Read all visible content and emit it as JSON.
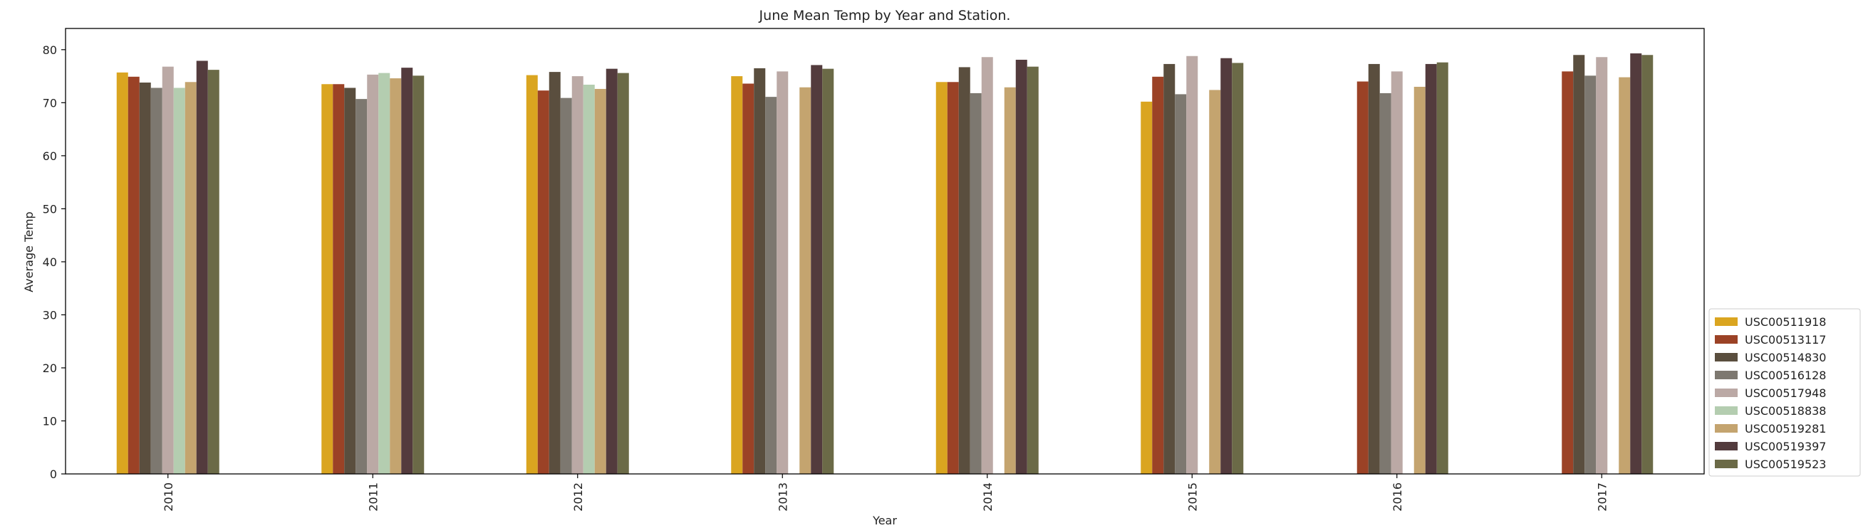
{
  "chart_data": {
    "type": "bar",
    "title": "June Mean Temp by Year and Station.",
    "xlabel": "Year",
    "ylabel": "Average Temp",
    "ylim": [
      0,
      84
    ],
    "yticks": [
      0,
      10,
      20,
      30,
      40,
      50,
      60,
      70,
      80
    ],
    "grid": false,
    "legend_position": "lower-right",
    "categories": [
      "2010",
      "2011",
      "2012",
      "2013",
      "2014",
      "2015",
      "2016",
      "2017"
    ],
    "series": [
      {
        "name": "USC00511918",
        "color": "#daa520",
        "values": [
          75.7,
          73.5,
          75.2,
          75.0,
          73.9,
          70.2,
          null,
          null
        ]
      },
      {
        "name": "USC00513117",
        "color": "#9b4226",
        "values": [
          74.9,
          73.5,
          72.3,
          73.6,
          73.9,
          74.9,
          74.0,
          75.9
        ]
      },
      {
        "name": "USC00514830",
        "color": "#5a4e3e",
        "values": [
          73.8,
          72.8,
          75.8,
          76.5,
          76.7,
          77.3,
          77.3,
          79.0
        ]
      },
      {
        "name": "USC00516128",
        "color": "#7d7870",
        "values": [
          72.8,
          70.7,
          70.9,
          71.1,
          71.8,
          71.6,
          71.8,
          75.1
        ]
      },
      {
        "name": "USC00517948",
        "color": "#bba9a5",
        "values": [
          76.8,
          75.3,
          75.0,
          75.9,
          78.6,
          78.8,
          75.9,
          78.6
        ]
      },
      {
        "name": "USC00518838",
        "color": "#b4cdb0",
        "values": [
          72.8,
          75.6,
          73.4,
          null,
          null,
          null,
          null,
          null
        ]
      },
      {
        "name": "USC00519281",
        "color": "#c4a46f",
        "values": [
          73.9,
          74.6,
          72.6,
          72.9,
          72.9,
          72.4,
          73.0,
          74.8
        ]
      },
      {
        "name": "USC00519397",
        "color": "#533b3d",
        "values": [
          77.9,
          76.6,
          76.4,
          77.1,
          78.1,
          78.4,
          77.3,
          79.3
        ]
      },
      {
        "name": "USC00519523",
        "color": "#6b6a47",
        "values": [
          76.2,
          75.1,
          75.6,
          76.4,
          76.8,
          77.5,
          77.6,
          79.0
        ]
      }
    ]
  }
}
